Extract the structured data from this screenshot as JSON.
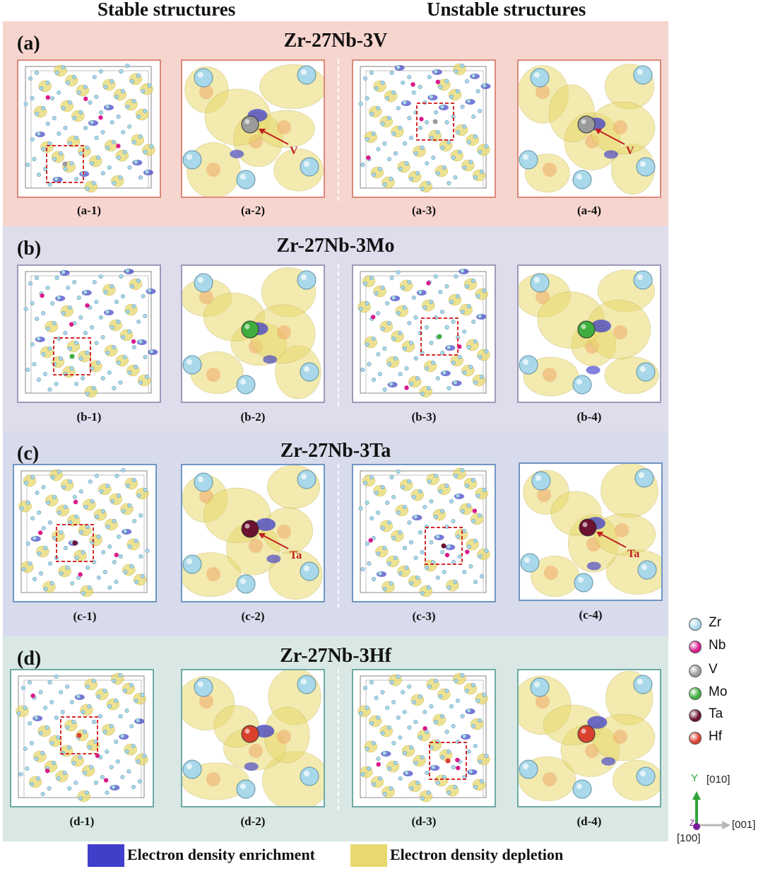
{
  "headers": {
    "stable": "Stable structures",
    "unstable": "Unstable structures"
  },
  "panels": [
    {
      "label": "(a)",
      "title": "Zr-27Nb-3V",
      "captions": [
        "(a-1)",
        "(a-2)",
        "(a-3)",
        "(a-4)"
      ],
      "annotation": "V",
      "dopant": "V",
      "bg": "#f7d5cf",
      "border": "#d9897a"
    },
    {
      "label": "(b)",
      "title": "Zr-27Nb-3Mo",
      "captions": [
        "(b-1)",
        "(b-2)",
        "(b-3)",
        "(b-4)"
      ],
      "annotation": "",
      "dopant": "Mo",
      "bg": "#dfddec",
      "border": "#9c9ab8"
    },
    {
      "label": "(c)",
      "title": "Zr-27Nb-3Ta",
      "captions": [
        "(c-1)",
        "(c-2)",
        "(c-3)",
        "(c-4)"
      ],
      "annotation": "Ta",
      "dopant": "Ta",
      "bg": "#d7dbeb",
      "border": "#6f96c4"
    },
    {
      "label": "(d)",
      "title": "Zr-27Nb-3Hf",
      "captions": [
        "(d-1)",
        "(d-2)",
        "(d-3)",
        "(d-4)"
      ],
      "annotation": "",
      "dopant": "Hf",
      "bg": "#d9e8e5",
      "border": "#6fa9a3"
    }
  ],
  "atom_legend": [
    {
      "name": "Zr",
      "color": "#a8d8ea"
    },
    {
      "name": "Nb",
      "color": "#d81b8c"
    },
    {
      "name": "V",
      "color": "#9a9a9a"
    },
    {
      "name": "Mo",
      "color": "#3fae3f"
    },
    {
      "name": "Ta",
      "color": "#6b1230"
    },
    {
      "name": "Hf",
      "color": "#d9412e"
    }
  ],
  "density_legend": {
    "enrichment": {
      "label": "Electron density enrichment",
      "color": "#3f3fc9"
    },
    "depletion": {
      "label": "Electron density depletion",
      "color": "#e8d96e"
    }
  },
  "axes": {
    "y": "[010]",
    "y_short": "Y",
    "x": "[001]",
    "z": "[100]",
    "z_short": "Z"
  }
}
